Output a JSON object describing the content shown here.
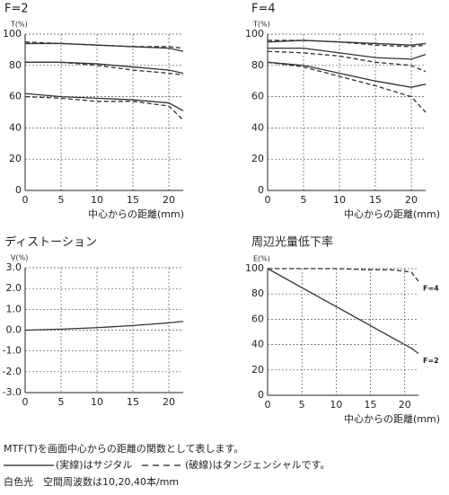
{
  "chart_data": [
    {
      "type": "line",
      "title": "F=2",
      "y_unit": "T(%)",
      "x_label": "中心からの距離(mm)",
      "x": [
        0,
        5,
        10,
        15,
        20,
        22
      ],
      "xlim": [
        0,
        22
      ],
      "xticks": [
        0,
        5,
        10,
        15,
        20
      ],
      "ylim": [
        0,
        100
      ],
      "yticks": [
        0,
        20,
        40,
        60,
        80,
        100
      ],
      "grid": true,
      "series": [
        {
          "color": "#333333",
          "dashed": false,
          "values": [
            94,
            94,
            93,
            92,
            91,
            89
          ]
        },
        {
          "color": "#333333",
          "dashed": true,
          "values": [
            95,
            94,
            93,
            92,
            92,
            91
          ]
        },
        {
          "color": "#333333",
          "dashed": false,
          "values": [
            82,
            82,
            81,
            79,
            77,
            75
          ]
        },
        {
          "color": "#333333",
          "dashed": true,
          "values": [
            82,
            82,
            80,
            77,
            75,
            74
          ]
        },
        {
          "color": "#333333",
          "dashed": false,
          "values": [
            62,
            60,
            59,
            58,
            56,
            51
          ]
        },
        {
          "color": "#333333",
          "dashed": true,
          "values": [
            60,
            59,
            57,
            57,
            54,
            45
          ]
        }
      ]
    },
    {
      "type": "line",
      "title": "F=4",
      "y_unit": "T(%)",
      "x_label": "中心からの距離(mm)",
      "x": [
        0,
        5,
        10,
        15,
        20,
        22
      ],
      "xlim": [
        0,
        22
      ],
      "xticks": [
        0,
        5,
        10,
        15,
        20
      ],
      "ylim": [
        0,
        100
      ],
      "yticks": [
        0,
        20,
        40,
        60,
        80,
        100
      ],
      "grid": true,
      "series": [
        {
          "color": "#333333",
          "dashed": false,
          "values": [
            95,
            96,
            95,
            94,
            93,
            94
          ]
        },
        {
          "color": "#333333",
          "dashed": true,
          "values": [
            96,
            96,
            95,
            93,
            92,
            93
          ]
        },
        {
          "color": "#333333",
          "dashed": false,
          "values": [
            91,
            91,
            88,
            85,
            84,
            87
          ]
        },
        {
          "color": "#333333",
          "dashed": true,
          "values": [
            89,
            88,
            86,
            82,
            80,
            76
          ]
        },
        {
          "color": "#333333",
          "dashed": false,
          "values": [
            82,
            80,
            75,
            70,
            66,
            68
          ]
        },
        {
          "color": "#333333",
          "dashed": true,
          "values": [
            82,
            79,
            73,
            67,
            60,
            50
          ]
        }
      ]
    },
    {
      "type": "line",
      "title": "ディストーション",
      "y_unit": "V(%)",
      "x": [
        0,
        5,
        10,
        15,
        20,
        22
      ],
      "xlim": [
        0,
        22
      ],
      "xticks": [
        0,
        5,
        10,
        15,
        20
      ],
      "ylim": [
        -3,
        3
      ],
      "grid": true,
      "yticks": [
        {
          "value": -3,
          "label": "-3.0"
        },
        {
          "value": -2,
          "label": "-2.0"
        },
        {
          "value": -1,
          "label": "-1.0"
        },
        {
          "value": 0,
          "label": "0.0"
        },
        {
          "value": 1,
          "label": "1.0"
        },
        {
          "value": 2,
          "label": "2.0"
        },
        {
          "value": 3,
          "label": "3.0"
        }
      ],
      "series": [
        {
          "color": "#333333",
          "dashed": false,
          "values": [
            0,
            0.05,
            0.12,
            0.22,
            0.35,
            0.42
          ]
        }
      ]
    },
    {
      "type": "line",
      "title": "周辺光量低下率",
      "y_unit": "E(%)",
      "x_label": "中心からの距離(mm)",
      "x": [
        0,
        5,
        10,
        15,
        18,
        20,
        21,
        22
      ],
      "xlim": [
        0,
        22
      ],
      "xticks": [
        0,
        5,
        10,
        15,
        20
      ],
      "ylim": [
        0,
        100
      ],
      "yticks": [
        0,
        20,
        40,
        60,
        80,
        100
      ],
      "grid": true,
      "end_labels": true,
      "series": [
        {
          "name": "F=4",
          "color": "#333333",
          "dashed": true,
          "values": [
            100,
            100,
            100,
            99,
            99,
            98,
            97,
            90
          ]
        },
        {
          "name": "F=2",
          "color": "#333333",
          "dashed": false,
          "values": [
            100,
            85,
            70,
            55,
            46,
            40,
            37,
            33
          ]
        }
      ]
    }
  ],
  "notes": {
    "line1": "MTF(T)を画面中心からの距離の関数として表します。",
    "legend_solid": "(実線)はサジタル",
    "legend_dashed": "(破線)はタンジェンシャルです。",
    "line3": "白色光　空間周波数は10,20,40本/mm"
  }
}
